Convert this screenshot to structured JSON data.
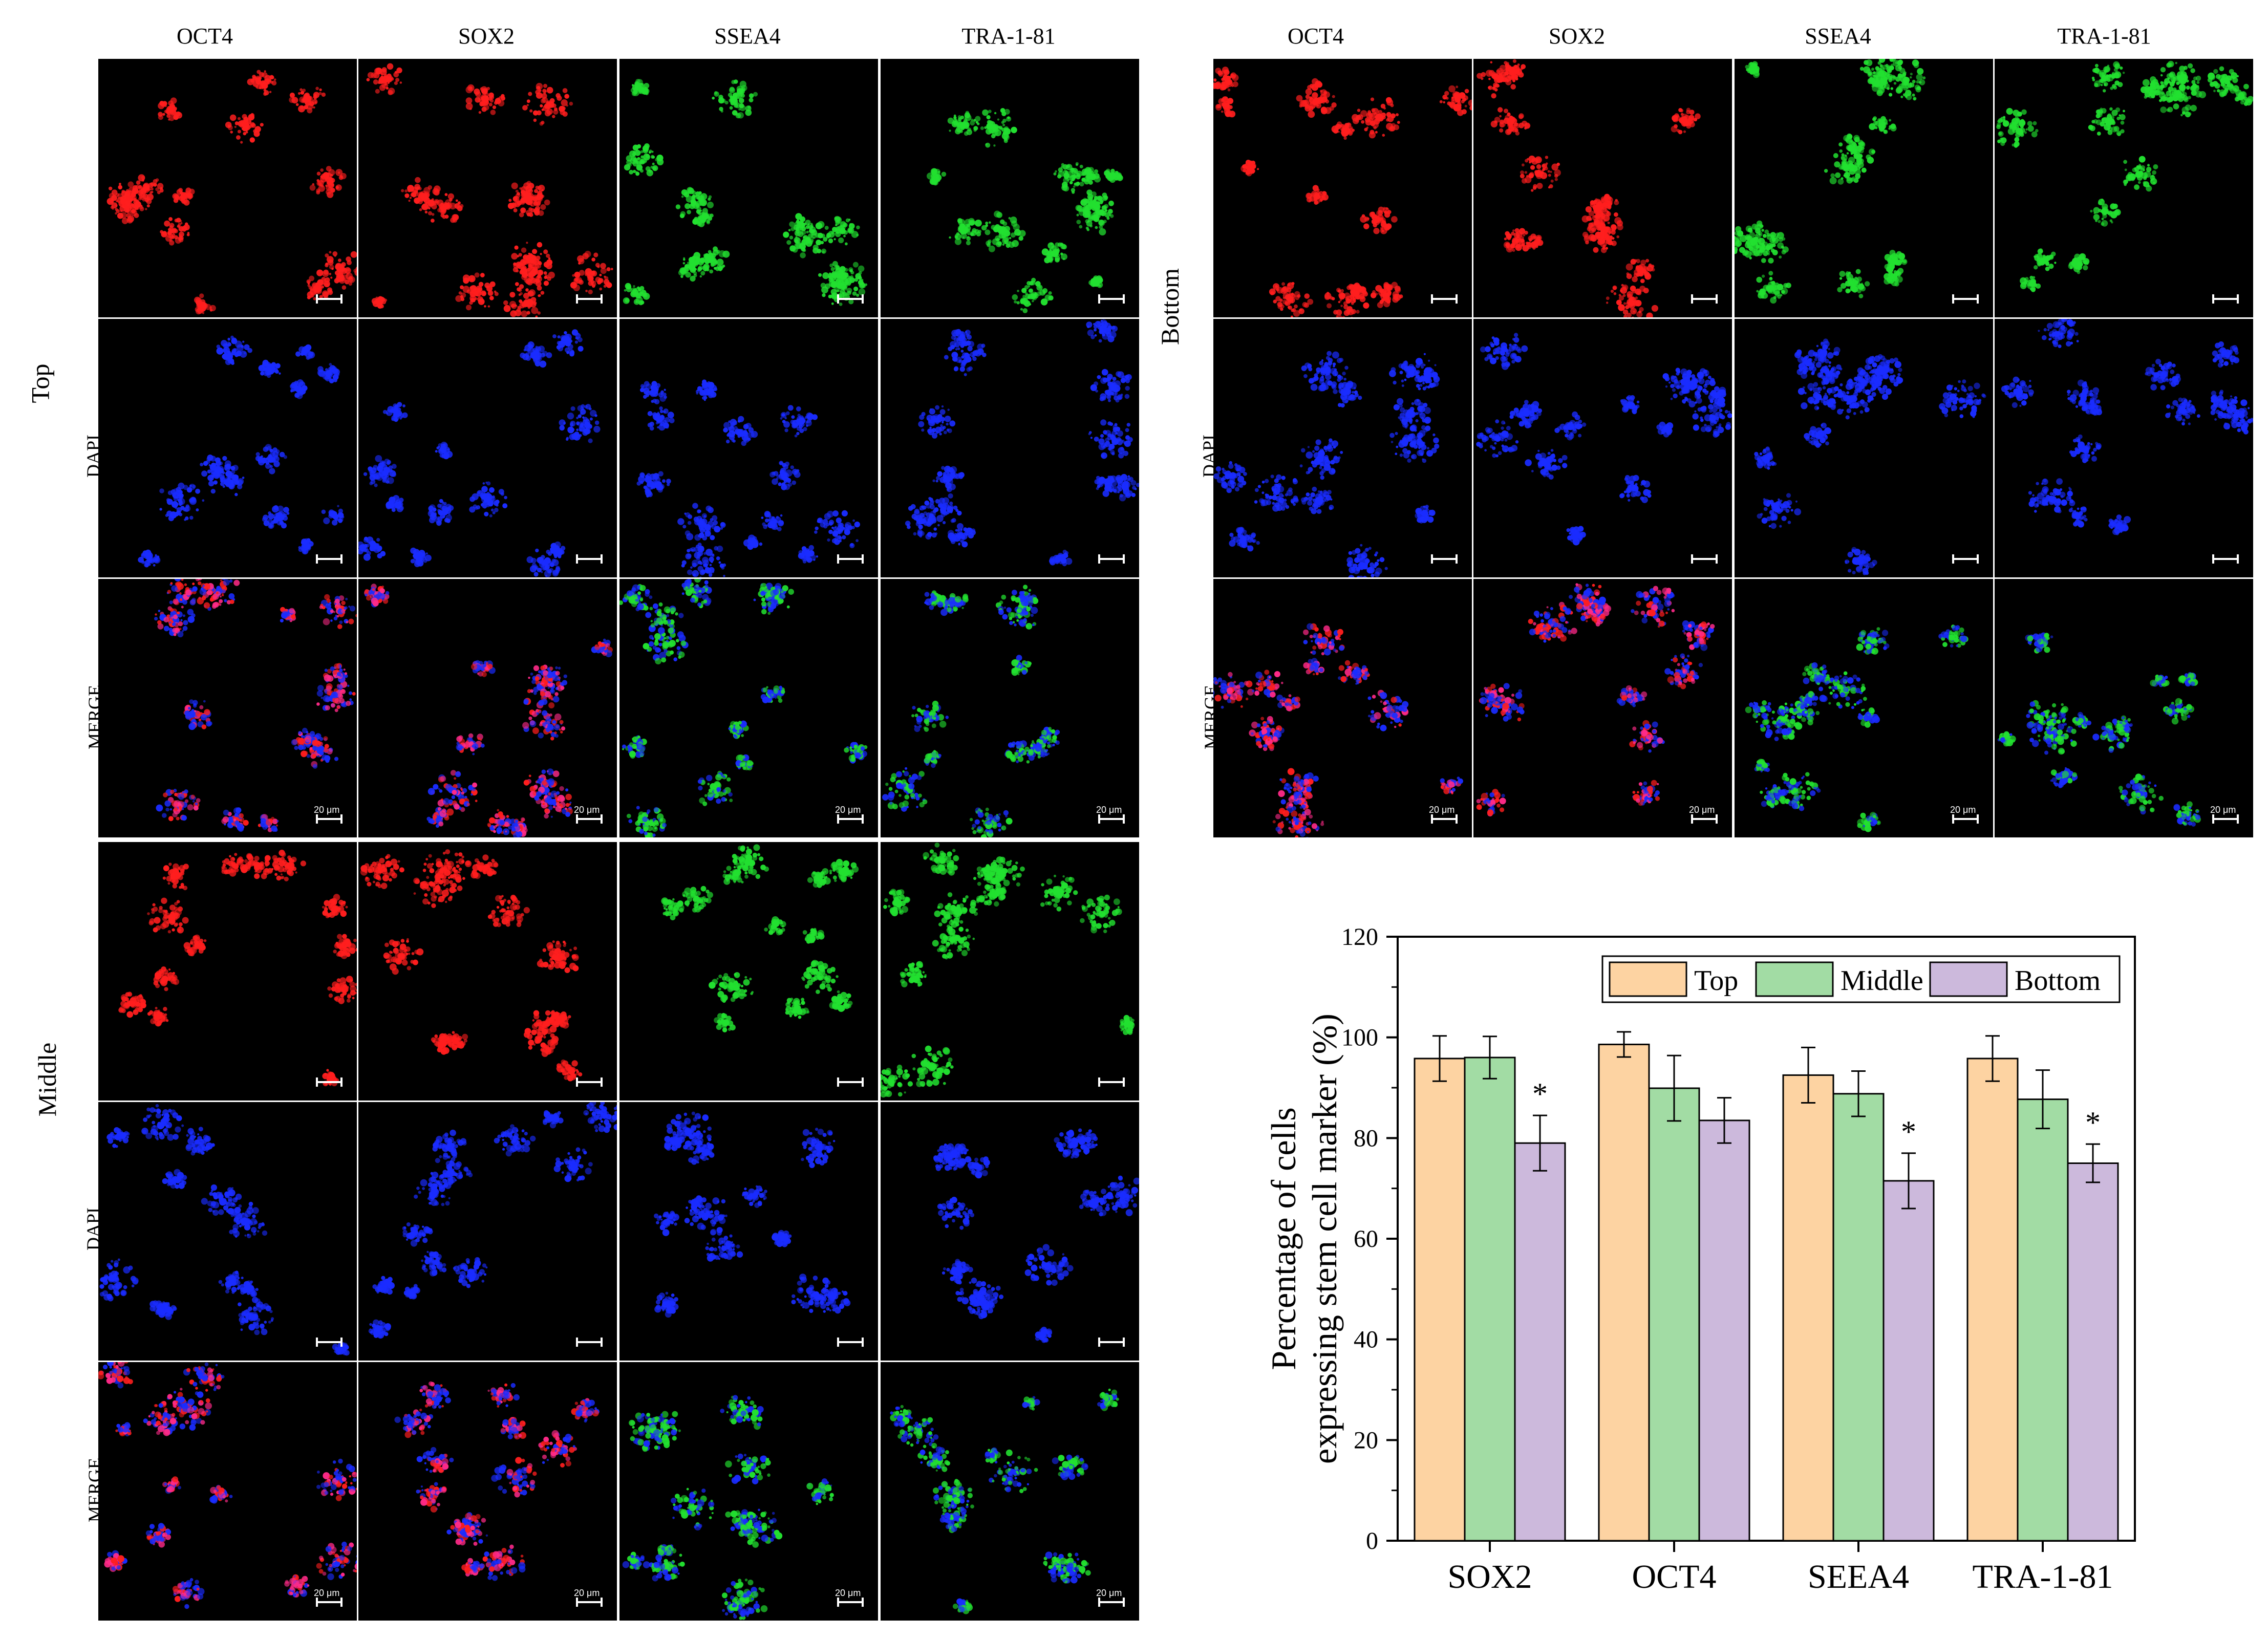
{
  "markers": [
    "OCT4",
    "SOX2",
    "SSEA4",
    "TRA-1-81"
  ],
  "rows": {
    "top": "Top",
    "middle": "Middle",
    "bottom": "Bottom"
  },
  "channels": [
    "DAPI",
    "MERGE"
  ],
  "scale_label": "20 μm",
  "colors": {
    "red": "#ff1e1e",
    "green": "#22e030",
    "blue": "#1a2cff",
    "magenta": "#ff2a88"
  },
  "chart_data": {
    "type": "bar",
    "categories": [
      "SOX2",
      "OCT4",
      "SEEA4",
      "TRA-1-81"
    ],
    "series": [
      {
        "name": "Top",
        "color": "#fdd3a2",
        "values": [
          95.8,
          98.6,
          92.5,
          95.8
        ],
        "errors": [
          4.5,
          2.5,
          5.5,
          4.5
        ]
      },
      {
        "name": "Middle",
        "color": "#a2dca4",
        "values": [
          96.0,
          89.9,
          88.8,
          87.7
        ],
        "errors": [
          4.2,
          6.5,
          4.5,
          5.8
        ]
      },
      {
        "name": "Bottom",
        "color": "#ccb9dc",
        "values": [
          79.0,
          83.5,
          71.5,
          75.0
        ],
        "errors": [
          5.5,
          4.5,
          5.5,
          3.8
        ]
      }
    ],
    "significance": [
      "*",
      "",
      "*",
      "*"
    ],
    "ylabel_line1": "Percentage of cells",
    "ylabel_line2": "expressing stem cell marker (%)",
    "ylim": [
      0,
      120
    ],
    "yticks": [
      0,
      20,
      40,
      60,
      80,
      100,
      120
    ],
    "legend": "top-right"
  }
}
